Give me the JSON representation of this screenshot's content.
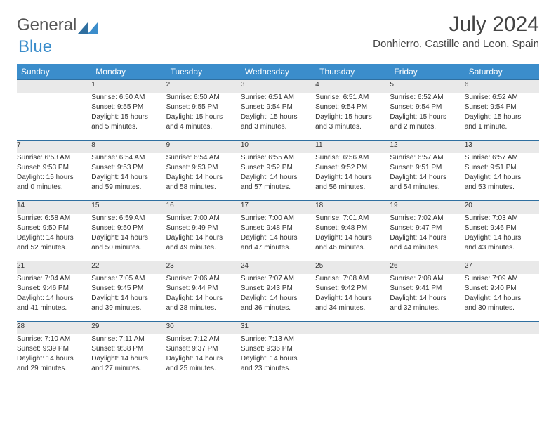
{
  "logo": {
    "part1": "General",
    "part2": "Blue"
  },
  "title": "July 2024",
  "location": "Donhierro, Castille and Leon, Spain",
  "colors": {
    "header_bg": "#3b8dcb",
    "header_text": "#ffffff",
    "daynum_bg": "#e9e9e9",
    "daynum_border": "#2f6fa0",
    "body_text": "#333333"
  },
  "weekdays": [
    "Sunday",
    "Monday",
    "Tuesday",
    "Wednesday",
    "Thursday",
    "Friday",
    "Saturday"
  ],
  "weeks": [
    {
      "nums": [
        "",
        "1",
        "2",
        "3",
        "4",
        "5",
        "6"
      ],
      "cells": [
        null,
        {
          "sunrise": "Sunrise: 6:50 AM",
          "sunset": "Sunset: 9:55 PM",
          "d1": "Daylight: 15 hours",
          "d2": "and 5 minutes."
        },
        {
          "sunrise": "Sunrise: 6:50 AM",
          "sunset": "Sunset: 9:55 PM",
          "d1": "Daylight: 15 hours",
          "d2": "and 4 minutes."
        },
        {
          "sunrise": "Sunrise: 6:51 AM",
          "sunset": "Sunset: 9:54 PM",
          "d1": "Daylight: 15 hours",
          "d2": "and 3 minutes."
        },
        {
          "sunrise": "Sunrise: 6:51 AM",
          "sunset": "Sunset: 9:54 PM",
          "d1": "Daylight: 15 hours",
          "d2": "and 3 minutes."
        },
        {
          "sunrise": "Sunrise: 6:52 AM",
          "sunset": "Sunset: 9:54 PM",
          "d1": "Daylight: 15 hours",
          "d2": "and 2 minutes."
        },
        {
          "sunrise": "Sunrise: 6:52 AM",
          "sunset": "Sunset: 9:54 PM",
          "d1": "Daylight: 15 hours",
          "d2": "and 1 minute."
        }
      ]
    },
    {
      "nums": [
        "7",
        "8",
        "9",
        "10",
        "11",
        "12",
        "13"
      ],
      "cells": [
        {
          "sunrise": "Sunrise: 6:53 AM",
          "sunset": "Sunset: 9:53 PM",
          "d1": "Daylight: 15 hours",
          "d2": "and 0 minutes."
        },
        {
          "sunrise": "Sunrise: 6:54 AM",
          "sunset": "Sunset: 9:53 PM",
          "d1": "Daylight: 14 hours",
          "d2": "and 59 minutes."
        },
        {
          "sunrise": "Sunrise: 6:54 AM",
          "sunset": "Sunset: 9:53 PM",
          "d1": "Daylight: 14 hours",
          "d2": "and 58 minutes."
        },
        {
          "sunrise": "Sunrise: 6:55 AM",
          "sunset": "Sunset: 9:52 PM",
          "d1": "Daylight: 14 hours",
          "d2": "and 57 minutes."
        },
        {
          "sunrise": "Sunrise: 6:56 AM",
          "sunset": "Sunset: 9:52 PM",
          "d1": "Daylight: 14 hours",
          "d2": "and 56 minutes."
        },
        {
          "sunrise": "Sunrise: 6:57 AM",
          "sunset": "Sunset: 9:51 PM",
          "d1": "Daylight: 14 hours",
          "d2": "and 54 minutes."
        },
        {
          "sunrise": "Sunrise: 6:57 AM",
          "sunset": "Sunset: 9:51 PM",
          "d1": "Daylight: 14 hours",
          "d2": "and 53 minutes."
        }
      ]
    },
    {
      "nums": [
        "14",
        "15",
        "16",
        "17",
        "18",
        "19",
        "20"
      ],
      "cells": [
        {
          "sunrise": "Sunrise: 6:58 AM",
          "sunset": "Sunset: 9:50 PM",
          "d1": "Daylight: 14 hours",
          "d2": "and 52 minutes."
        },
        {
          "sunrise": "Sunrise: 6:59 AM",
          "sunset": "Sunset: 9:50 PM",
          "d1": "Daylight: 14 hours",
          "d2": "and 50 minutes."
        },
        {
          "sunrise": "Sunrise: 7:00 AM",
          "sunset": "Sunset: 9:49 PM",
          "d1": "Daylight: 14 hours",
          "d2": "and 49 minutes."
        },
        {
          "sunrise": "Sunrise: 7:00 AM",
          "sunset": "Sunset: 9:48 PM",
          "d1": "Daylight: 14 hours",
          "d2": "and 47 minutes."
        },
        {
          "sunrise": "Sunrise: 7:01 AM",
          "sunset": "Sunset: 9:48 PM",
          "d1": "Daylight: 14 hours",
          "d2": "and 46 minutes."
        },
        {
          "sunrise": "Sunrise: 7:02 AM",
          "sunset": "Sunset: 9:47 PM",
          "d1": "Daylight: 14 hours",
          "d2": "and 44 minutes."
        },
        {
          "sunrise": "Sunrise: 7:03 AM",
          "sunset": "Sunset: 9:46 PM",
          "d1": "Daylight: 14 hours",
          "d2": "and 43 minutes."
        }
      ]
    },
    {
      "nums": [
        "21",
        "22",
        "23",
        "24",
        "25",
        "26",
        "27"
      ],
      "cells": [
        {
          "sunrise": "Sunrise: 7:04 AM",
          "sunset": "Sunset: 9:46 PM",
          "d1": "Daylight: 14 hours",
          "d2": "and 41 minutes."
        },
        {
          "sunrise": "Sunrise: 7:05 AM",
          "sunset": "Sunset: 9:45 PM",
          "d1": "Daylight: 14 hours",
          "d2": "and 39 minutes."
        },
        {
          "sunrise": "Sunrise: 7:06 AM",
          "sunset": "Sunset: 9:44 PM",
          "d1": "Daylight: 14 hours",
          "d2": "and 38 minutes."
        },
        {
          "sunrise": "Sunrise: 7:07 AM",
          "sunset": "Sunset: 9:43 PM",
          "d1": "Daylight: 14 hours",
          "d2": "and 36 minutes."
        },
        {
          "sunrise": "Sunrise: 7:08 AM",
          "sunset": "Sunset: 9:42 PM",
          "d1": "Daylight: 14 hours",
          "d2": "and 34 minutes."
        },
        {
          "sunrise": "Sunrise: 7:08 AM",
          "sunset": "Sunset: 9:41 PM",
          "d1": "Daylight: 14 hours",
          "d2": "and 32 minutes."
        },
        {
          "sunrise": "Sunrise: 7:09 AM",
          "sunset": "Sunset: 9:40 PM",
          "d1": "Daylight: 14 hours",
          "d2": "and 30 minutes."
        }
      ]
    },
    {
      "nums": [
        "28",
        "29",
        "30",
        "31",
        "",
        "",
        ""
      ],
      "cells": [
        {
          "sunrise": "Sunrise: 7:10 AM",
          "sunset": "Sunset: 9:39 PM",
          "d1": "Daylight: 14 hours",
          "d2": "and 29 minutes."
        },
        {
          "sunrise": "Sunrise: 7:11 AM",
          "sunset": "Sunset: 9:38 PM",
          "d1": "Daylight: 14 hours",
          "d2": "and 27 minutes."
        },
        {
          "sunrise": "Sunrise: 7:12 AM",
          "sunset": "Sunset: 9:37 PM",
          "d1": "Daylight: 14 hours",
          "d2": "and 25 minutes."
        },
        {
          "sunrise": "Sunrise: 7:13 AM",
          "sunset": "Sunset: 9:36 PM",
          "d1": "Daylight: 14 hours",
          "d2": "and 23 minutes."
        },
        null,
        null,
        null
      ]
    }
  ]
}
